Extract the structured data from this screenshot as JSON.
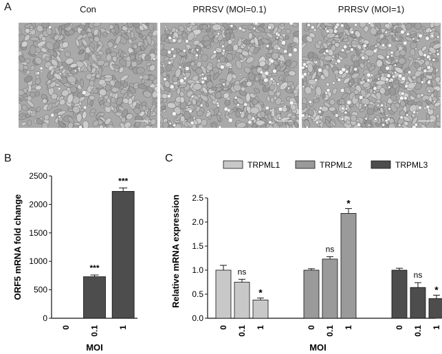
{
  "panels": {
    "a_label": "A",
    "b_label": "B",
    "c_label": "C"
  },
  "micrographs": [
    {
      "title": "Con",
      "density": "uniform"
    },
    {
      "title": "PRRSV (MOI=0.1)",
      "density": "clustered"
    },
    {
      "title": "PRRSV (MOI=1)",
      "density": "heavy-clustered"
    }
  ],
  "colors": {
    "bar_dark": "#4d4d4d",
    "trpml1": "#c8c8c8",
    "trpml2": "#9a9a9a",
    "trpml3": "#4d4d4d"
  },
  "chart_data": [
    {
      "type": "bar",
      "panel": "B",
      "categories": [
        "0",
        "0.1",
        "1"
      ],
      "values": [
        0,
        730,
        2230
      ],
      "errors": [
        0,
        30,
        60
      ],
      "annotations": [
        "",
        "***",
        "***"
      ],
      "xlabel": "MOI",
      "ylabel": "ORF5 mRNA fold change",
      "ylim": [
        0,
        2500
      ],
      "yticks": [
        0,
        500,
        1000,
        1500,
        2000,
        2500
      ]
    },
    {
      "type": "bar",
      "panel": "C",
      "groups": [
        "TRPML1",
        "TRPML2",
        "TRPML3"
      ],
      "categories": [
        "0",
        "0.1",
        "1"
      ],
      "series": [
        {
          "name": "TRPML1",
          "values": [
            1.0,
            0.75,
            0.38
          ],
          "errors": [
            0.1,
            0.06,
            0.04
          ],
          "annotations": [
            "",
            "ns",
            "*"
          ]
        },
        {
          "name": "TRPML2",
          "values": [
            1.0,
            1.23,
            2.18
          ],
          "errors": [
            0.03,
            0.05,
            0.1
          ],
          "annotations": [
            "",
            "ns",
            "*"
          ]
        },
        {
          "name": "TRPML3",
          "values": [
            1.0,
            0.64,
            0.41
          ],
          "errors": [
            0.04,
            0.1,
            0.07
          ],
          "annotations": [
            "",
            "ns",
            "*"
          ]
        }
      ],
      "legend": [
        "TRPML1",
        "TRPML2",
        "TRPML3"
      ],
      "xlabel": "MOI",
      "ylabel": "Relative mRNA expression",
      "ylim": [
        0,
        2.5
      ],
      "yticks": [
        "0.0",
        "0.5",
        "1.0",
        "1.5",
        "2.0",
        "2.5"
      ]
    }
  ]
}
